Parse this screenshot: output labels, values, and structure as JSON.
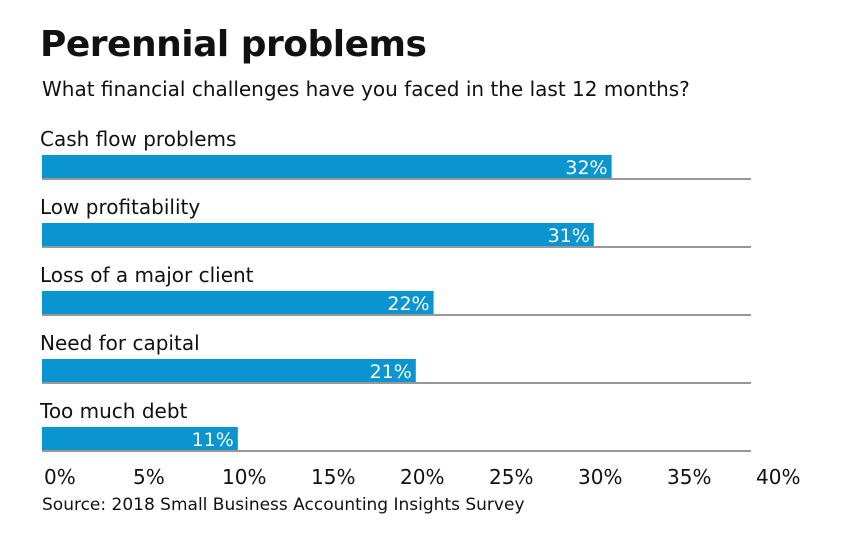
{
  "chart_data": {
    "type": "bar",
    "orientation": "horizontal",
    "title": "Perennial problems",
    "subtitle": "What financial challenges have you faced in the last 12 months?",
    "source": "Source: 2018 Small Business Accounting Insights Survey",
    "categories": [
      "Cash flow problems",
      "Low profitability",
      "Loss of a major client",
      "Need for capital",
      "Too much debt"
    ],
    "values": [
      32,
      31,
      22,
      21,
      11
    ],
    "data_labels": [
      "32%",
      "31%",
      "22%",
      "21%",
      "11%"
    ],
    "xlim": [
      0,
      40
    ],
    "x_ticks": [
      "0%",
      "5%",
      "10%",
      "15%",
      "20%",
      "25%",
      "30%",
      "35%",
      "40%"
    ],
    "grid": false,
    "bar_color": "#0a94d0",
    "baseline_color": "#777777"
  }
}
